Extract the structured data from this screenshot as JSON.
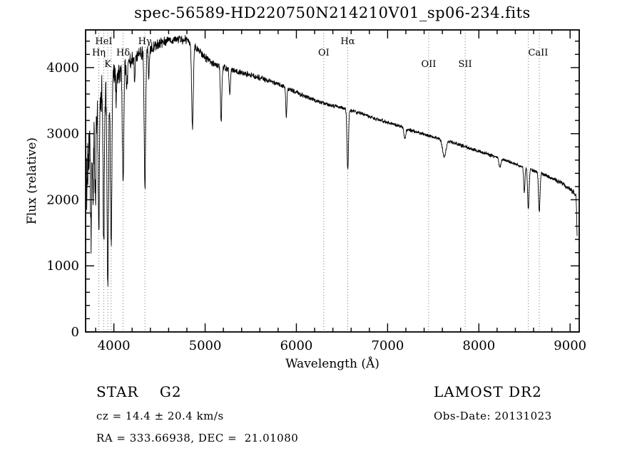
{
  "chart_data": {
    "type": "line",
    "title": "spec-56589-HD220750N214210V01_sp06-234.fits",
    "xlabel": "Wavelength (Å)",
    "ylabel": "Flux (relative)",
    "xlim": [
      3690,
      9100
    ],
    "ylim": [
      0,
      4570
    ],
    "xticks": [
      4000,
      5000,
      6000,
      7000,
      8000,
      9000
    ],
    "yticks": [
      0,
      1000,
      2000,
      3000,
      4000
    ],
    "x_minor_step": 200,
    "y_minor_step": 200,
    "grid": false,
    "legend": "none",
    "line_color": "#000000",
    "background_color": "#ffffff",
    "marker_line_color": "#777777",
    "continuum_anchors": [
      [
        3700,
        2100
      ],
      [
        3730,
        2700
      ],
      [
        3760,
        3100
      ],
      [
        3800,
        3400
      ],
      [
        3850,
        3550
      ],
      [
        3900,
        3650
      ],
      [
        3950,
        3720
      ],
      [
        4000,
        3900
      ],
      [
        4050,
        3950
      ],
      [
        4150,
        4060
      ],
      [
        4250,
        4200
      ],
      [
        4400,
        4300
      ],
      [
        4550,
        4400
      ],
      [
        4700,
        4430
      ],
      [
        4800,
        4420
      ],
      [
        4900,
        4300
      ],
      [
        5000,
        4150
      ],
      [
        5100,
        4050
      ],
      [
        5300,
        3960
      ],
      [
        5500,
        3890
      ],
      [
        5700,
        3800
      ],
      [
        5900,
        3690
      ],
      [
        6100,
        3560
      ],
      [
        6300,
        3460
      ],
      [
        6500,
        3390
      ],
      [
        6700,
        3310
      ],
      [
        6900,
        3210
      ],
      [
        7100,
        3130
      ],
      [
        7300,
        3030
      ],
      [
        7500,
        2950
      ],
      [
        7700,
        2870
      ],
      [
        7900,
        2780
      ],
      [
        8100,
        2690
      ],
      [
        8300,
        2590
      ],
      [
        8500,
        2490
      ],
      [
        8700,
        2390
      ],
      [
        8900,
        2260
      ],
      [
        9000,
        2160
      ],
      [
        9040,
        2110
      ],
      [
        9065,
        2050
      ],
      [
        9078,
        1800
      ]
    ],
    "noise_envelope": [
      [
        3700,
        650
      ],
      [
        3750,
        600
      ],
      [
        3800,
        550
      ],
      [
        3850,
        520
      ],
      [
        3900,
        460
      ],
      [
        3950,
        380
      ],
      [
        4000,
        300
      ],
      [
        4100,
        210
      ],
      [
        4200,
        160
      ],
      [
        4350,
        120
      ],
      [
        4500,
        95
      ],
      [
        4800,
        75
      ],
      [
        5200,
        60
      ],
      [
        5800,
        45
      ],
      [
        6500,
        35
      ],
      [
        7500,
        28
      ],
      [
        8500,
        30
      ],
      [
        9000,
        40
      ],
      [
        9078,
        60
      ]
    ],
    "absorption_lines": [
      {
        "center": 3750,
        "depth": 1500,
        "sigma": 6
      },
      {
        "center": 3771,
        "depth": 1100,
        "sigma": 5
      },
      {
        "center": 3798,
        "depth": 1400,
        "sigma": 6
      },
      {
        "center": 3835,
        "depth": 2000,
        "sigma": 7
      },
      {
        "center": 3889,
        "depth": 2200,
        "sigma": 7
      },
      {
        "center": 3933,
        "depth": 2800,
        "sigma": 8
      },
      {
        "center": 3970,
        "depth": 2500,
        "sigma": 8
      },
      {
        "center": 4026,
        "depth": 500,
        "sigma": 5
      },
      {
        "center": 4101,
        "depth": 1800,
        "sigma": 8
      },
      {
        "center": 4144,
        "depth": 420,
        "sigma": 5
      },
      {
        "center": 4227,
        "depth": 350,
        "sigma": 5
      },
      {
        "center": 4340,
        "depth": 2100,
        "sigma": 8
      },
      {
        "center": 4383,
        "depth": 480,
        "sigma": 5
      },
      {
        "center": 4861,
        "depth": 1250,
        "sigma": 9
      },
      {
        "center": 5175,
        "depth": 850,
        "sigma": 7
      },
      {
        "center": 5270,
        "depth": 400,
        "sigma": 6
      },
      {
        "center": 5890,
        "depth": 450,
        "sigma": 6
      },
      {
        "center": 6563,
        "depth": 900,
        "sigma": 8
      },
      {
        "center": 7190,
        "depth": 150,
        "sigma": 10
      },
      {
        "center": 7620,
        "depth": 250,
        "sigma": 18
      },
      {
        "center": 8230,
        "depth": 150,
        "sigma": 10
      },
      {
        "center": 8498,
        "depth": 380,
        "sigma": 7
      },
      {
        "center": 8542,
        "depth": 620,
        "sigma": 8
      },
      {
        "center": 8662,
        "depth": 600,
        "sigma": 8
      },
      {
        "center": 9078,
        "depth": 400,
        "sigma": 5
      }
    ],
    "spectral_markers": [
      {
        "label": "HeI",
        "wavelength": 3889,
        "row": 0,
        "lines": [
          3889
        ]
      },
      {
        "label": "Hη",
        "wavelength": 3835,
        "row": 1,
        "lines": [
          3835
        ]
      },
      {
        "label": "K",
        "wavelength": 3933,
        "row": 2,
        "lines": [
          3933
        ]
      },
      {
        "label": "",
        "wavelength": 3970,
        "row": 2,
        "lines": [
          3970
        ]
      },
      {
        "label": "Hδ",
        "wavelength": 4101,
        "row": 1,
        "lines": [
          4101
        ]
      },
      {
        "label": "Hγ",
        "wavelength": 4340,
        "row": 0,
        "lines": [
          4340
        ]
      },
      {
        "label": "OI",
        "wavelength": 6300,
        "row": 1,
        "lines": [
          6300
        ]
      },
      {
        "label": "Hα",
        "wavelength": 6563,
        "row": 0,
        "lines": [
          6563
        ]
      },
      {
        "label": "OII",
        "wavelength": 7450,
        "row": 2,
        "lines": [
          7450
        ]
      },
      {
        "label": "SII",
        "wavelength": 7850,
        "row": 2,
        "lines": [
          7850
        ]
      },
      {
        "label": "CaII",
        "wavelength": 8650,
        "row": 1,
        "lines": [
          8542,
          8662
        ]
      }
    ]
  },
  "footer": {
    "class_line": "STAR    G2",
    "survey": "LAMOST DR2",
    "cz_line": "cz = 14.4 ± 20.4 km/s",
    "obs_line": "Obs-Date: 20131023",
    "coord_line": "RA = 333.66938, DEC =  21.01080"
  }
}
